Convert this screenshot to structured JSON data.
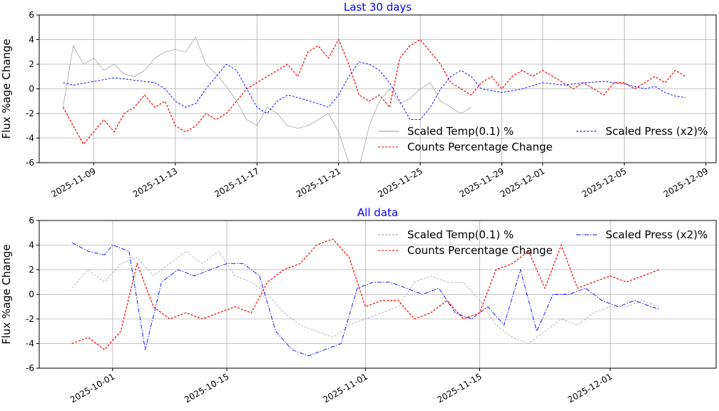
{
  "colors": {
    "temp": "#999999",
    "counts": "#ff0000",
    "press": "#0000ff",
    "title": "#0000ff",
    "grid": "#b0b0b0"
  },
  "chart_data": [
    {
      "type": "line",
      "title": "Last 30 days",
      "ylabel": "Flux %age Change",
      "xlabel": "",
      "ylim": [
        -6,
        6
      ],
      "yticks": [
        -6,
        -4,
        -2,
        0,
        2,
        4,
        6
      ],
      "xlim": [
        "2025-11-06T08:00",
        "2025-12-09T12:00"
      ],
      "xticks": [
        "2025-11-09",
        "2025-11-13",
        "2025-11-17",
        "2025-11-21",
        "2025-11-25",
        "2025-11-29",
        "2025-12-01",
        "2025-12-05",
        "2025-12-09"
      ],
      "grid": true,
      "legend": {
        "placement": "lower-right",
        "ncol": 2
      },
      "series": [
        {
          "name": "Scaled Temp(0.1) %",
          "style": "solid",
          "x": [
            "2025-11-07T12:00",
            "2025-11-08T00:00",
            "2025-11-08T12:00",
            "2025-11-09T00:00",
            "2025-11-09T12:00",
            "2025-11-10T00:00",
            "2025-11-10T12:00",
            "2025-11-11T00:00",
            "2025-11-11T12:00",
            "2025-11-12T00:00",
            "2025-11-12T12:00",
            "2025-11-13T00:00",
            "2025-11-13T12:00",
            "2025-11-14T00:00",
            "2025-11-14T12:00",
            "2025-11-15T00:00",
            "2025-11-15T12:00",
            "2025-11-16T00:00",
            "2025-11-16T12:00",
            "2025-11-17T00:00",
            "2025-11-17T12:00",
            "2025-11-18T00:00",
            "2025-11-18T12:00",
            "2025-11-19T00:00",
            "2025-11-19T12:00",
            "2025-11-20T00:00",
            "2025-11-20T12:00",
            "2025-11-21T00:00",
            "2025-11-21T12:00",
            "2025-11-22T00:00",
            "2025-11-22T12:00",
            "2025-11-23T00:00",
            "2025-11-23T12:00",
            "2025-11-24T00:00",
            "2025-11-24T12:00",
            "2025-11-25T00:00",
            "2025-11-25T12:00",
            "2025-11-26T00:00",
            "2025-11-26T12:00",
            "2025-11-27T00:00",
            "2025-11-27T12:00"
          ],
          "y": [
            -1.5,
            3.5,
            2.0,
            2.5,
            1.5,
            2.0,
            1.2,
            1.0,
            1.5,
            2.5,
            3.0,
            3.2,
            3.0,
            4.2,
            2.0,
            1.2,
            0.2,
            -1.0,
            -2.5,
            -3.0,
            -1.5,
            -2.0,
            -3.0,
            -3.2,
            -3.0,
            -2.5,
            -2.0,
            -3.5,
            -6.0,
            -6.5,
            -3.0,
            -1.0,
            0.0,
            -1.2,
            -0.8,
            0.0,
            0.5,
            -1.0,
            -1.5,
            -2.0,
            -1.5
          ]
        },
        {
          "name": "Counts Percentage Change",
          "style": "dashed",
          "x": [
            "2025-11-07T12:00",
            "2025-11-08T00:00",
            "2025-11-08T12:00",
            "2025-11-09T00:00",
            "2025-11-09T12:00",
            "2025-11-10T00:00",
            "2025-11-10T12:00",
            "2025-11-11T00:00",
            "2025-11-11T12:00",
            "2025-11-12T00:00",
            "2025-11-12T12:00",
            "2025-11-13T00:00",
            "2025-11-13T12:00",
            "2025-11-14T00:00",
            "2025-11-14T12:00",
            "2025-11-15T00:00",
            "2025-11-15T12:00",
            "2025-11-16T00:00",
            "2025-11-16T12:00",
            "2025-11-17T00:00",
            "2025-11-17T12:00",
            "2025-11-18T00:00",
            "2025-11-18T12:00",
            "2025-11-19T00:00",
            "2025-11-19T12:00",
            "2025-11-20T00:00",
            "2025-11-20T12:00",
            "2025-11-21T00:00",
            "2025-11-21T12:00",
            "2025-11-22T00:00",
            "2025-11-22T12:00",
            "2025-11-23T00:00",
            "2025-11-23T12:00",
            "2025-11-24T00:00",
            "2025-11-24T12:00",
            "2025-11-25T00:00",
            "2025-11-25T12:00",
            "2025-11-26T00:00",
            "2025-11-26T12:00",
            "2025-11-27T00:00",
            "2025-11-27T12:00",
            "2025-11-28T00:00",
            "2025-11-28T12:00",
            "2025-11-29T00:00",
            "2025-11-29T12:00",
            "2025-11-30T00:00",
            "2025-11-30T12:00",
            "2025-12-01T00:00",
            "2025-12-01T12:00",
            "2025-12-02T00:00",
            "2025-12-02T12:00",
            "2025-12-03T00:00",
            "2025-12-03T12:00",
            "2025-12-04T00:00",
            "2025-12-04T12:00",
            "2025-12-05T00:00",
            "2025-12-05T12:00",
            "2025-12-06T00:00",
            "2025-12-06T12:00",
            "2025-12-07T00:00",
            "2025-12-07T12:00",
            "2025-12-08T00:00"
          ],
          "y": [
            -1.5,
            -3.0,
            -4.5,
            -3.5,
            -2.5,
            -3.5,
            -2.0,
            -1.5,
            -0.5,
            -1.5,
            -1.0,
            -3.0,
            -3.5,
            -3.0,
            -2.0,
            -2.5,
            -2.0,
            -1.0,
            0.0,
            0.5,
            1.0,
            1.5,
            2.0,
            1.0,
            3.0,
            3.5,
            2.5,
            4.0,
            2.0,
            -0.5,
            -1.0,
            -0.5,
            -1.5,
            2.5,
            3.5,
            4.0,
            3.0,
            2.0,
            0.5,
            0.0,
            -0.5,
            0.5,
            1.0,
            0.0,
            1.0,
            1.5,
            1.0,
            1.5,
            1.0,
            0.5,
            0.0,
            0.5,
            0.0,
            -0.5,
            0.5,
            0.5,
            0.0,
            0.5,
            1.0,
            0.5,
            1.5,
            1.0
          ]
        },
        {
          "name": "Scaled Press (x2)%",
          "style": "dashed",
          "x": [
            "2025-11-07T12:00",
            "2025-11-08T00:00",
            "2025-11-09T00:00",
            "2025-11-10T00:00",
            "2025-11-11T00:00",
            "2025-11-12T00:00",
            "2025-11-12T12:00",
            "2025-11-13T00:00",
            "2025-11-13T12:00",
            "2025-11-14T00:00",
            "2025-11-14T12:00",
            "2025-11-15T00:00",
            "2025-11-15T12:00",
            "2025-11-16T00:00",
            "2025-11-16T12:00",
            "2025-11-17T00:00",
            "2025-11-17T12:00",
            "2025-11-18T00:00",
            "2025-11-18T12:00",
            "2025-11-19T00:00",
            "2025-11-20T00:00",
            "2025-11-20T12:00",
            "2025-11-21T00:00",
            "2025-11-21T12:00",
            "2025-11-22T00:00",
            "2025-11-22T12:00",
            "2025-11-23T00:00",
            "2025-11-23T12:00",
            "2025-11-24T00:00",
            "2025-11-24T12:00",
            "2025-11-25T00:00",
            "2025-11-25T12:00",
            "2025-11-26T00:00",
            "2025-11-26T12:00",
            "2025-11-27T00:00",
            "2025-11-27T12:00",
            "2025-11-28T00:00",
            "2025-11-29T00:00",
            "2025-11-30T00:00",
            "2025-12-01T00:00",
            "2025-12-02T00:00",
            "2025-12-03T00:00",
            "2025-12-04T00:00",
            "2025-12-05T00:00",
            "2025-12-06T00:00",
            "2025-12-06T12:00",
            "2025-12-07T00:00",
            "2025-12-07T12:00",
            "2025-12-08T00:00"
          ],
          "y": [
            0.5,
            0.3,
            0.6,
            0.9,
            0.7,
            0.5,
            0.0,
            -1.0,
            -1.5,
            -1.2,
            0.0,
            1.0,
            2.0,
            1.5,
            0.0,
            -1.5,
            -2.0,
            -1.0,
            -0.5,
            -0.7,
            -1.2,
            -1.5,
            -0.5,
            1.0,
            2.2,
            2.0,
            1.5,
            0.5,
            -1.0,
            -2.5,
            -2.5,
            -1.5,
            0.0,
            1.0,
            1.5,
            1.0,
            0.0,
            -0.3,
            0.0,
            0.5,
            0.3,
            0.5,
            0.6,
            0.4,
            0.0,
            0.2,
            -0.3,
            -0.6,
            -0.7
          ]
        }
      ]
    },
    {
      "type": "line",
      "title": "All data",
      "ylabel": "Flux %age Change",
      "xlabel": "",
      "ylim": [
        -6,
        6
      ],
      "yticks": [
        -6,
        -4,
        -2,
        0,
        2,
        4,
        6
      ],
      "xlim": [
        "2025-09-22",
        "2025-12-14"
      ],
      "xticks": [
        "2025-10-01",
        "2025-10-15",
        "2025-11-01",
        "2025-11-15",
        "2025-12-01"
      ],
      "grid": true,
      "legend": {
        "placement": "upper-right",
        "ncol": 2
      },
      "series": [
        {
          "name": "Scaled Temp(0.1) %",
          "style": "dashed",
          "x": [
            "2025-09-26",
            "2025-09-28",
            "2025-09-30",
            "2025-10-02",
            "2025-10-04",
            "2025-10-06",
            "2025-10-08",
            "2025-10-10",
            "2025-10-12",
            "2025-10-14",
            "2025-10-16",
            "2025-10-18",
            "2025-10-20",
            "2025-10-22",
            "2025-10-24",
            "2025-10-26",
            "2025-10-28",
            "2025-10-30",
            "2025-11-01",
            "2025-11-03",
            "2025-11-05",
            "2025-11-07",
            "2025-11-09",
            "2025-11-11",
            "2025-11-13",
            "2025-11-15",
            "2025-11-17",
            "2025-11-19",
            "2025-11-21",
            "2025-11-23",
            "2025-11-25",
            "2025-11-27",
            "2025-11-29",
            "2025-12-01",
            "2025-12-03",
            "2025-12-05",
            "2025-12-07"
          ],
          "y": [
            0.5,
            2.0,
            1.0,
            2.5,
            3.0,
            1.5,
            2.5,
            3.5,
            2.5,
            3.5,
            1.5,
            1.0,
            0.0,
            -1.5,
            -2.5,
            -3.0,
            -3.5,
            -2.5,
            -2.0,
            -1.5,
            -1.0,
            1.0,
            1.5,
            1.0,
            1.0,
            -0.5,
            -2.5,
            -3.5,
            -4.0,
            -3.0,
            -2.0,
            -2.5,
            -1.5,
            -1.0,
            -1.0,
            -0.5,
            -1.0
          ]
        },
        {
          "name": "Counts Percentage Change",
          "style": "dashed",
          "x": [
            "2025-09-26",
            "2025-09-28",
            "2025-09-30",
            "2025-10-02",
            "2025-10-04",
            "2025-10-06",
            "2025-10-08",
            "2025-10-10",
            "2025-10-12",
            "2025-10-14",
            "2025-10-16",
            "2025-10-18",
            "2025-10-20",
            "2025-10-22",
            "2025-10-24",
            "2025-10-26",
            "2025-10-28",
            "2025-10-30",
            "2025-11-01",
            "2025-11-03",
            "2025-11-05",
            "2025-11-07",
            "2025-11-09",
            "2025-11-11",
            "2025-11-13",
            "2025-11-15",
            "2025-11-17",
            "2025-11-19",
            "2025-11-21",
            "2025-11-23",
            "2025-11-25",
            "2025-11-27",
            "2025-11-29",
            "2025-12-01",
            "2025-12-03",
            "2025-12-05",
            "2025-12-07"
          ],
          "y": [
            -4.0,
            -3.5,
            -4.5,
            -3.0,
            2.5,
            -1.0,
            -2.0,
            -1.5,
            -2.0,
            -1.5,
            -1.0,
            -1.5,
            1.0,
            2.0,
            2.5,
            4.0,
            4.5,
            3.0,
            -1.0,
            -0.5,
            -0.5,
            -2.0,
            -1.5,
            -0.5,
            -2.0,
            -1.5,
            2.0,
            2.5,
            3.5,
            0.5,
            4.0,
            0.5,
            1.0,
            1.5,
            1.0,
            1.5,
            2.0
          ]
        },
        {
          "name": "Scaled Press (x2)%",
          "style": "dashdot",
          "x": [
            "2025-09-26",
            "2025-09-28",
            "2025-09-30",
            "2025-10-01",
            "2025-10-03",
            "2025-10-05",
            "2025-10-07",
            "2025-10-09",
            "2025-10-11",
            "2025-10-13",
            "2025-10-15",
            "2025-10-17",
            "2025-10-19",
            "2025-10-21",
            "2025-10-23",
            "2025-10-25",
            "2025-10-27",
            "2025-10-29",
            "2025-10-31",
            "2025-11-02",
            "2025-11-04",
            "2025-11-06",
            "2025-11-08",
            "2025-11-10",
            "2025-11-12",
            "2025-11-14",
            "2025-11-16",
            "2025-11-18",
            "2025-11-20",
            "2025-11-22",
            "2025-11-24",
            "2025-11-26",
            "2025-11-28",
            "2025-11-30",
            "2025-12-02",
            "2025-12-04",
            "2025-12-06",
            "2025-12-07"
          ],
          "y": [
            4.2,
            3.5,
            3.2,
            4.0,
            3.5,
            -4.5,
            1.0,
            2.0,
            1.5,
            2.0,
            2.5,
            2.5,
            1.5,
            -3.0,
            -4.5,
            -5.0,
            -4.5,
            -4.0,
            0.5,
            1.0,
            1.0,
            0.5,
            0.0,
            0.5,
            -1.5,
            -2.0,
            -1.0,
            -2.5,
            2.0,
            -3.0,
            0.0,
            0.0,
            0.5,
            -0.5,
            -1.0,
            -0.5,
            -1.0,
            -1.2
          ]
        }
      ]
    }
  ]
}
